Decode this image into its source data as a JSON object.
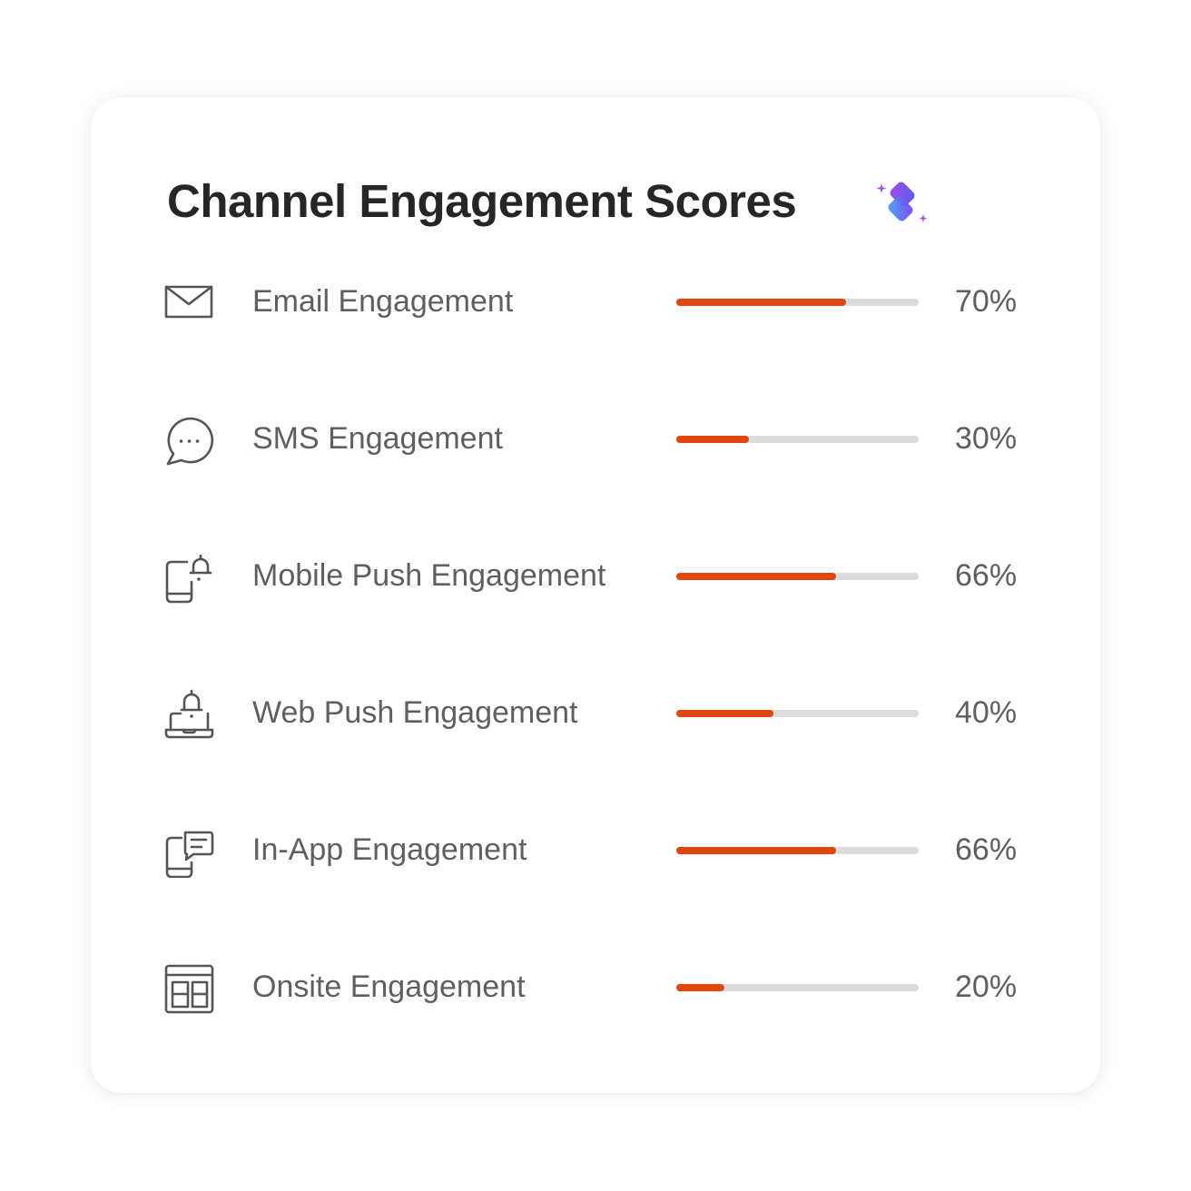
{
  "card": {
    "title": "Channel Engagement Scores",
    "title_icon": "ai-sparkle-icon"
  },
  "colors": {
    "bar_fill": "#e0470f",
    "bar_track": "#dcdcdc",
    "title_text": "#262626",
    "label_text": "#5f5f5f"
  },
  "channels": [
    {
      "label": "Email Engagement",
      "value": "70%",
      "score": 0.7,
      "icon": "envelope-icon"
    },
    {
      "label": "SMS Engagement",
      "value": "30%",
      "score": 0.3,
      "icon": "chat-bubble-icon"
    },
    {
      "label": "Mobile Push Engagement",
      "value": "66%",
      "score": 0.66,
      "icon": "mobile-bell-icon"
    },
    {
      "label": "Web Push Engagement",
      "value": "40%",
      "score": 0.4,
      "icon": "laptop-bell-icon"
    },
    {
      "label": "In-App Engagement",
      "value": "66%",
      "score": 0.66,
      "icon": "mobile-message-icon"
    },
    {
      "label": "Onsite Engagement",
      "value": "20%",
      "score": 0.2,
      "icon": "webpage-layout-icon"
    }
  ]
}
